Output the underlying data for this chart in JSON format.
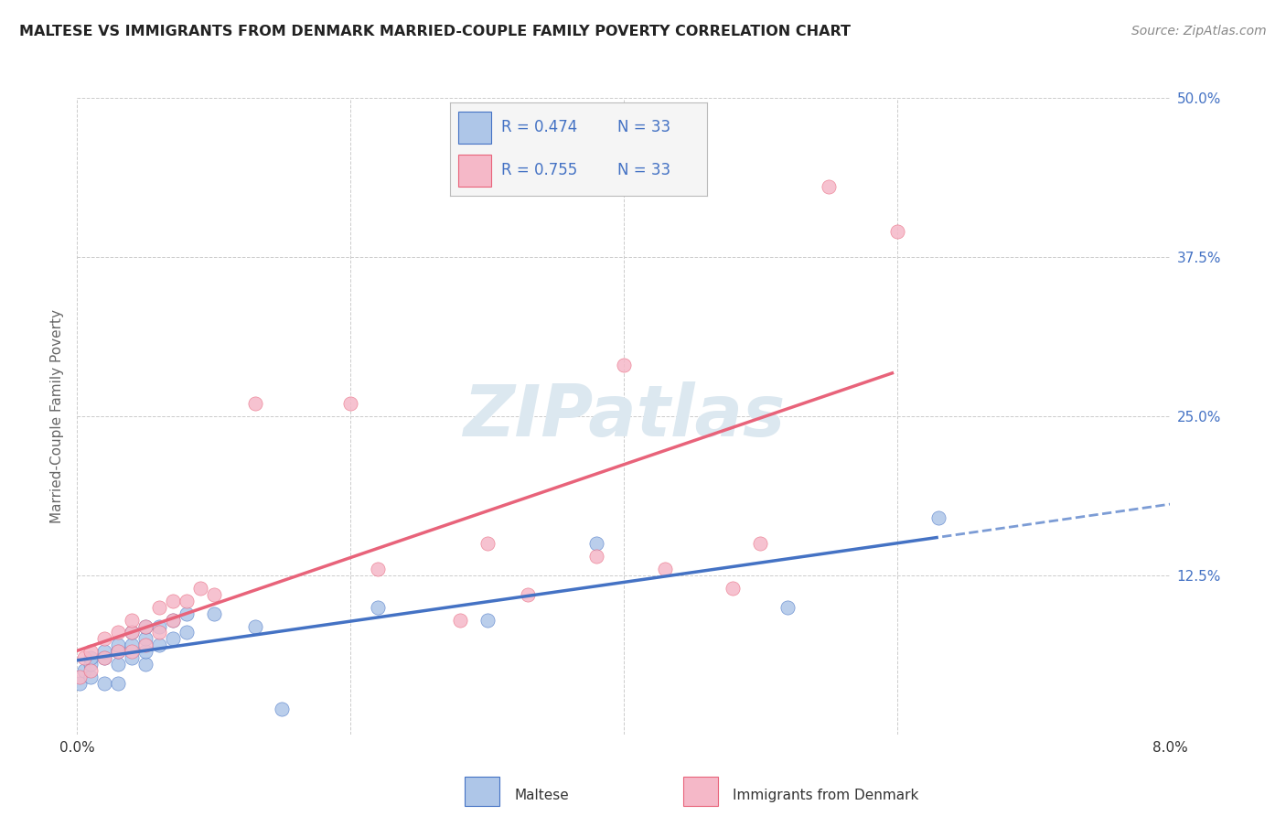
{
  "title": "MALTESE VS IMMIGRANTS FROM DENMARK MARRIED-COUPLE FAMILY POVERTY CORRELATION CHART",
  "source": "Source: ZipAtlas.com",
  "ylabel": "Married-Couple Family Poverty",
  "xlim": [
    0.0,
    0.08
  ],
  "ylim": [
    0.0,
    0.5
  ],
  "xticks": [
    0.0,
    0.02,
    0.04,
    0.06,
    0.08
  ],
  "yticks": [
    0.0,
    0.125,
    0.25,
    0.375,
    0.5
  ],
  "maltese_R": 0.474,
  "maltese_N": 33,
  "denmark_R": 0.755,
  "denmark_N": 33,
  "maltese_color": "#aec6e8",
  "denmark_color": "#f5b8c8",
  "maltese_line_color": "#4472c4",
  "denmark_line_color": "#e8637a",
  "label_color": "#4472c4",
  "maltese_x": [
    0.0002,
    0.0005,
    0.001,
    0.001,
    0.001,
    0.002,
    0.002,
    0.002,
    0.003,
    0.003,
    0.003,
    0.003,
    0.004,
    0.004,
    0.004,
    0.005,
    0.005,
    0.005,
    0.005,
    0.006,
    0.006,
    0.007,
    0.007,
    0.008,
    0.008,
    0.01,
    0.013,
    0.015,
    0.022,
    0.03,
    0.038,
    0.052,
    0.063
  ],
  "maltese_y": [
    0.04,
    0.05,
    0.045,
    0.055,
    0.06,
    0.04,
    0.06,
    0.065,
    0.04,
    0.055,
    0.065,
    0.07,
    0.06,
    0.07,
    0.08,
    0.055,
    0.065,
    0.075,
    0.085,
    0.07,
    0.085,
    0.075,
    0.09,
    0.08,
    0.095,
    0.095,
    0.085,
    0.02,
    0.1,
    0.09,
    0.15,
    0.1,
    0.17
  ],
  "denmark_x": [
    0.0002,
    0.0005,
    0.001,
    0.001,
    0.002,
    0.002,
    0.003,
    0.003,
    0.004,
    0.004,
    0.004,
    0.005,
    0.005,
    0.006,
    0.006,
    0.007,
    0.007,
    0.008,
    0.009,
    0.01,
    0.013,
    0.02,
    0.022,
    0.028,
    0.03,
    0.033,
    0.038,
    0.04,
    0.043,
    0.048,
    0.05,
    0.055,
    0.06
  ],
  "denmark_y": [
    0.045,
    0.06,
    0.05,
    0.065,
    0.06,
    0.075,
    0.065,
    0.08,
    0.065,
    0.08,
    0.09,
    0.07,
    0.085,
    0.08,
    0.1,
    0.09,
    0.105,
    0.105,
    0.115,
    0.11,
    0.26,
    0.26,
    0.13,
    0.09,
    0.15,
    0.11,
    0.14,
    0.29,
    0.13,
    0.115,
    0.15,
    0.43,
    0.395
  ],
  "background_color": "#ffffff",
  "grid_color": "#cccccc",
  "watermark_text": "ZIPatlas",
  "watermark_color": "#dce8f0"
}
